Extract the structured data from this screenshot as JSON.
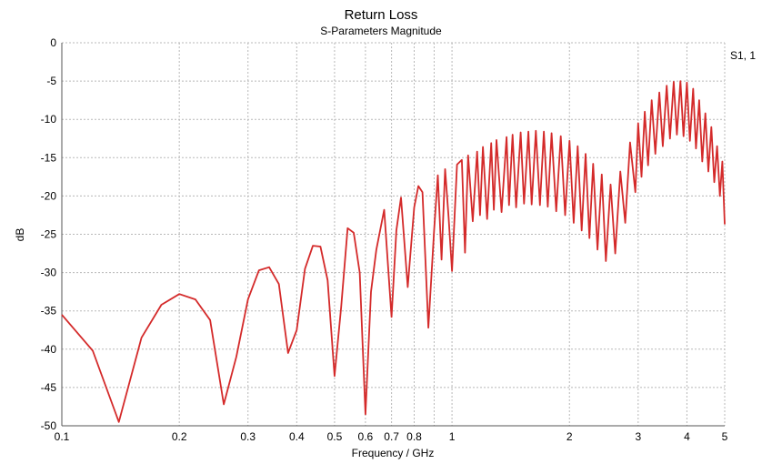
{
  "chart_data": {
    "type": "line",
    "title": "Return Loss",
    "subtitle": "S-Parameters Magnitude",
    "xlabel": "Frequency / GHz",
    "ylabel": "dB",
    "x_scale": "log",
    "xlim": [
      0.1,
      5
    ],
    "ylim": [
      -50,
      0
    ],
    "x_ticks": [
      0.1,
      0.2,
      0.3,
      0.4,
      0.5,
      0.6,
      0.7,
      0.8,
      1,
      2,
      3,
      4,
      5
    ],
    "x_tick_labels": [
      "0.1",
      "0.2",
      "0.3",
      "0.4",
      "0.5",
      "0.6",
      "0.7",
      "0.8",
      "1",
      "2",
      "3",
      "4",
      "5"
    ],
    "x_minor_gridlines": [
      0.9
    ],
    "y_ticks": [
      0,
      -5,
      -10,
      -15,
      -20,
      -25,
      -30,
      -35,
      -40,
      -45,
      -50
    ],
    "y_tick_labels": [
      "0",
      "-5",
      "-10",
      "-15",
      "-20",
      "-25",
      "-30",
      "-35",
      "-40",
      "-45",
      "-50"
    ],
    "grid": true,
    "legend_position": "top-right",
    "series": [
      {
        "name": "S1, 1",
        "color": "#d42a2a",
        "x": [
          0.1,
          0.12,
          0.14,
          0.16,
          0.18,
          0.2,
          0.22,
          0.24,
          0.26,
          0.28,
          0.3,
          0.32,
          0.34,
          0.36,
          0.38,
          0.4,
          0.42,
          0.44,
          0.46,
          0.48,
          0.5,
          0.52,
          0.54,
          0.56,
          0.58,
          0.6,
          0.62,
          0.64,
          0.67,
          0.7,
          0.72,
          0.74,
          0.77,
          0.8,
          0.82,
          0.84,
          0.87,
          0.9,
          0.92,
          0.94,
          0.96,
          0.98,
          1.0,
          1.03,
          1.06,
          1.08,
          1.1,
          1.13,
          1.16,
          1.18,
          1.2,
          1.23,
          1.26,
          1.28,
          1.3,
          1.34,
          1.38,
          1.4,
          1.43,
          1.46,
          1.5,
          1.53,
          1.57,
          1.6,
          1.64,
          1.68,
          1.72,
          1.76,
          1.8,
          1.85,
          1.9,
          1.95,
          2.0,
          2.05,
          2.1,
          2.15,
          2.2,
          2.25,
          2.3,
          2.36,
          2.42,
          2.48,
          2.55,
          2.62,
          2.7,
          2.78,
          2.86,
          2.95,
          3.0,
          3.06,
          3.12,
          3.18,
          3.25,
          3.32,
          3.4,
          3.47,
          3.55,
          3.62,
          3.7,
          3.77,
          3.85,
          3.92,
          4.0,
          4.07,
          4.15,
          4.22,
          4.3,
          4.38,
          4.46,
          4.54,
          4.62,
          4.7,
          4.78,
          4.86,
          4.93,
          5.0
        ],
        "y": [
          -35.5,
          -40.2,
          -49.5,
          -38.5,
          -34.2,
          -32.8,
          -33.5,
          -36.2,
          -47.2,
          -41.0,
          -33.5,
          -29.7,
          -29.3,
          -31.5,
          -40.5,
          -37.5,
          -29.5,
          -26.5,
          -26.6,
          -31.0,
          -43.5,
          -34.5,
          -24.2,
          -24.8,
          -30.0,
          -48.5,
          -32.5,
          -27.0,
          -21.8,
          -35.8,
          -24.5,
          -20.2,
          -31.9,
          -21.5,
          -18.7,
          -19.5,
          -37.2,
          -24.5,
          -17.3,
          -28.3,
          -16.5,
          -22.7,
          -29.8,
          -15.9,
          -15.3,
          -27.4,
          -14.7,
          -23.3,
          -14.2,
          -22.5,
          -13.6,
          -23.0,
          -13.1,
          -21.8,
          -12.7,
          -22.1,
          -12.3,
          -21.2,
          -12.0,
          -21.5,
          -11.7,
          -21.0,
          -11.6,
          -21.1,
          -11.5,
          -21.2,
          -11.6,
          -21.4,
          -11.8,
          -22.0,
          -12.2,
          -22.5,
          -12.8,
          -23.5,
          -13.5,
          -24.5,
          -14.5,
          -25.5,
          -15.8,
          -27.0,
          -17.2,
          -28.5,
          -18.5,
          -27.5,
          -16.8,
          -23.5,
          -13.0,
          -19.5,
          -10.5,
          -17.5,
          -9.0,
          -16.0,
          -7.5,
          -14.5,
          -6.5,
          -13.5,
          -5.6,
          -12.5,
          -5.1,
          -12.0,
          -5.0,
          -12.2,
          -5.2,
          -12.8,
          -6.0,
          -13.8,
          -7.5,
          -15.5,
          -9.2,
          -16.8,
          -11.0,
          -18.2,
          -13.5,
          -20.0,
          -15.5,
          -23.7
        ]
      }
    ]
  }
}
